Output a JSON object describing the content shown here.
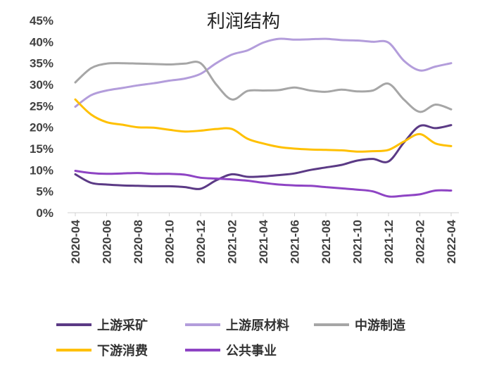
{
  "chart_data": {
    "type": "line",
    "title": "利润结构",
    "xlabel": "",
    "ylabel": "",
    "ylim": [
      0,
      45
    ],
    "y_ticks": [
      "0%",
      "5%",
      "10%",
      "15%",
      "20%",
      "25%",
      "30%",
      "35%",
      "40%",
      "45%"
    ],
    "x_ticks": [
      "2020-04",
      "2020-06",
      "2020-08",
      "2020-10",
      "2020-12",
      "2021-02",
      "2021-04",
      "2021-06",
      "2021-08",
      "2021-10",
      "2021-12",
      "2022-02",
      "2022-04"
    ],
    "categories": [
      "2020-04",
      "2020-05",
      "2020-06",
      "2020-07",
      "2020-08",
      "2020-09",
      "2020-10",
      "2020-11",
      "2020-12",
      "2021-01",
      "2021-02",
      "2021-03",
      "2021-04",
      "2021-05",
      "2021-06",
      "2021-07",
      "2021-08",
      "2021-09",
      "2021-10",
      "2021-11",
      "2021-12",
      "2022-01",
      "2022-02",
      "2022-03",
      "2022-04"
    ],
    "grid": false,
    "legend_position": "bottom",
    "series": [
      {
        "name": "上游采矿",
        "color": "#5b3a85",
        "values": [
          9.0,
          7.0,
          6.6,
          6.4,
          6.3,
          6.2,
          6.2,
          6.0,
          5.6,
          7.6,
          9.0,
          8.4,
          8.5,
          8.8,
          9.2,
          10.0,
          10.6,
          11.2,
          12.2,
          12.6,
          12.0,
          16.5,
          20.3,
          19.8,
          20.5
        ]
      },
      {
        "name": "上游原材料",
        "color": "#b39ddb",
        "values": [
          24.8,
          27.5,
          28.6,
          29.2,
          29.8,
          30.3,
          30.9,
          31.4,
          32.5,
          35.0,
          37.0,
          38.0,
          39.8,
          40.7,
          40.5,
          40.6,
          40.7,
          40.4,
          40.3,
          40.0,
          39.8,
          35.5,
          33.3,
          34.2,
          35.0
        ]
      },
      {
        "name": "中游制造",
        "color": "#a6a6a6",
        "values": [
          30.5,
          33.8,
          34.9,
          35.0,
          34.9,
          34.8,
          34.7,
          34.9,
          35.0,
          30.0,
          26.5,
          28.5,
          28.6,
          28.7,
          29.3,
          28.6,
          28.3,
          28.8,
          28.4,
          28.6,
          30.2,
          26.4,
          23.6,
          25.3,
          24.2
        ]
      },
      {
        "name": "下游消费",
        "color": "#ffc000",
        "values": [
          26.5,
          23.0,
          21.2,
          20.6,
          20.0,
          19.9,
          19.4,
          19.0,
          19.2,
          19.6,
          19.6,
          17.3,
          16.2,
          15.4,
          15.0,
          14.8,
          14.7,
          14.6,
          14.3,
          14.4,
          14.7,
          16.7,
          18.4,
          16.2,
          15.6
        ]
      },
      {
        "name": "公共事业",
        "color": "#8e44c4",
        "values": [
          9.8,
          9.3,
          9.1,
          9.2,
          9.3,
          9.1,
          9.1,
          8.9,
          8.2,
          8.0,
          7.8,
          7.5,
          7.0,
          6.6,
          6.4,
          6.3,
          6.0,
          5.7,
          5.4,
          5.0,
          3.8,
          4.0,
          4.3,
          5.2,
          5.2
        ]
      }
    ]
  }
}
